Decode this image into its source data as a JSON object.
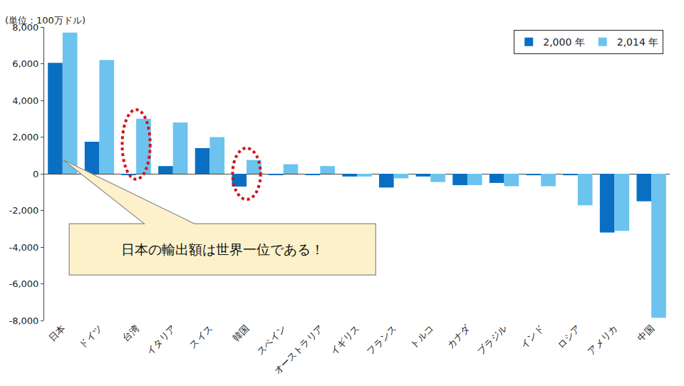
{
  "chart_data": {
    "type": "bar",
    "ylabel": "(単位：100万ドル)",
    "categories": [
      "日本",
      "ドイツ",
      "台湾",
      "イタリア",
      "スイス",
      "韓国",
      "スペイン",
      "オーストラリア",
      "イギリス",
      "フランス",
      "トルコ",
      "カナダ",
      "ブラジル",
      "インド",
      "ロシア",
      "アメリカ",
      "中国"
    ],
    "series": [
      {
        "name": "2,000 年",
        "color": "#0a6fc2",
        "values": [
          6050,
          1750,
          -50,
          420,
          1400,
          -700,
          -50,
          -50,
          -150,
          -750,
          -150,
          -620,
          -500,
          -80,
          -80,
          -3200,
          -1500
        ]
      },
      {
        "name": "2,014 年",
        "color": "#6cc3ee",
        "values": [
          7700,
          6200,
          3000,
          2800,
          2000,
          750,
          520,
          420,
          -150,
          -250,
          -450,
          -620,
          -680,
          -680,
          -1720,
          -3120,
          -7850
        ]
      }
    ],
    "ylim": [
      -8000,
      8000
    ],
    "yticks": [
      {
        "value": -8000,
        "label": "-8,000"
      },
      {
        "value": -6000,
        "label": "-6,000"
      },
      {
        "value": -4000,
        "label": "-4,000"
      },
      {
        "value": -2000,
        "label": "-2,000"
      },
      0,
      {
        "value": 2000,
        "label": "2,000"
      },
      {
        "value": 4000,
        "label": "4,000"
      },
      {
        "value": 6000,
        "label": "6,000"
      },
      {
        "value": 8000,
        "label": "8,000"
      }
    ],
    "grid": false,
    "legend": "upper right",
    "annotations": [
      {
        "text": "日本の輸出額は世界一位である！"
      }
    ]
  }
}
